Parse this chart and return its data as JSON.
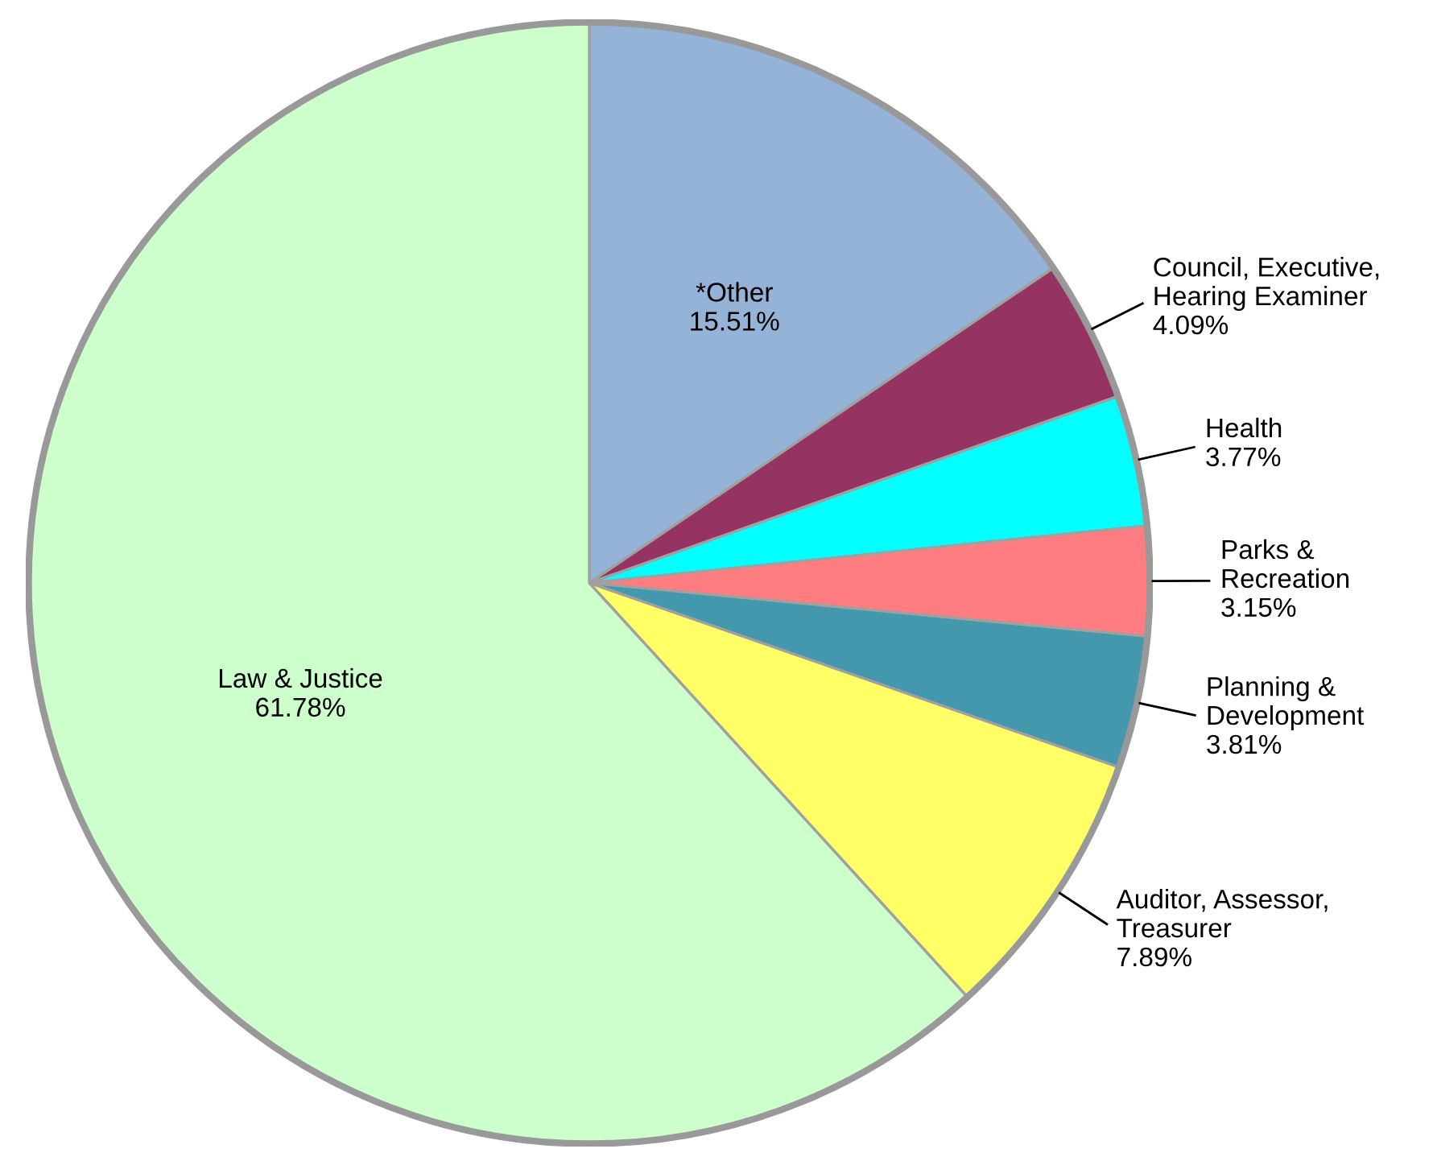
{
  "chart_data": {
    "type": "pie",
    "categories": [
      "*Other",
      "Council, Executive,\nHearing Examiner",
      "Health",
      "Parks &\nRecreation",
      "Planning &\nDevelopment",
      "Auditor, Assessor,\nTreasurer",
      "Law & Justice"
    ],
    "values": [
      15.51,
      4.09,
      3.77,
      3.15,
      3.81,
      7.89,
      61.78
    ],
    "colors": [
      "#95b3d7",
      "#953462",
      "#00ffff",
      "#ff7c80",
      "#4398ae",
      "#ffff66",
      "#ccffcc"
    ],
    "value_labels": [
      "15.51%",
      "4.09%",
      "3.77%",
      "3.15%",
      "3.81%",
      "7.89%",
      "61.78%"
    ]
  }
}
